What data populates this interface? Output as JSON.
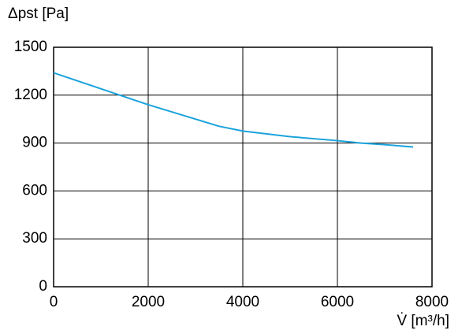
{
  "chart_data": {
    "type": "line",
    "ylabel": "Δpst [Pa]",
    "xlabel": "V̇ [m³/h]",
    "x": [
      0,
      1000,
      2000,
      3000,
      3500,
      4000,
      5000,
      6000,
      6500,
      7000,
      7600
    ],
    "values": [
      1340,
      1240,
      1140,
      1050,
      1005,
      975,
      940,
      915,
      900,
      890,
      875
    ],
    "color": "#1ba3dc",
    "xlim": [
      0,
      8000
    ],
    "xticks": [
      0,
      2000,
      4000,
      6000,
      8000
    ],
    "ylim": [
      0,
      1500
    ],
    "yticks": [
      0,
      300,
      600,
      900,
      1200,
      1500
    ],
    "grid": true
  }
}
